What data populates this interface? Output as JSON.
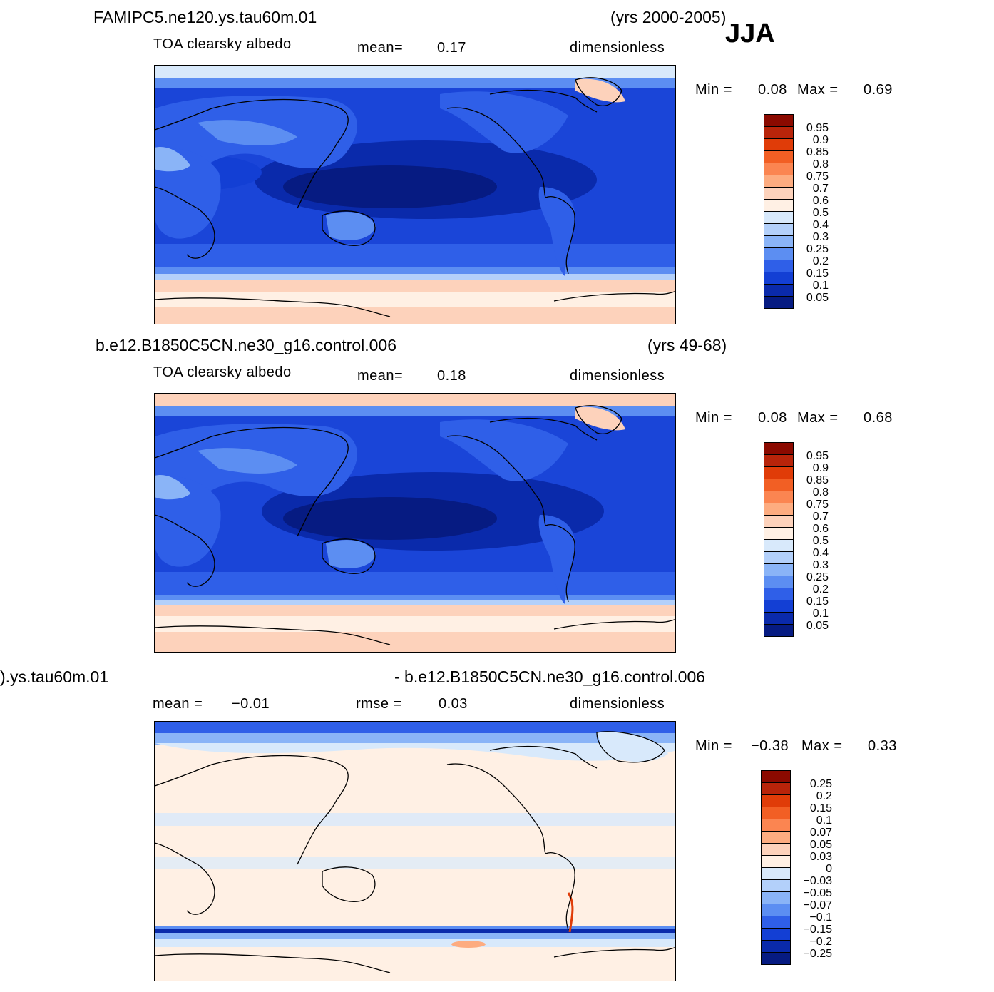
{
  "season": "JJA",
  "panels": [
    {
      "case_title": "FAMIPC5.ne120.ys.tau60m.01",
      "years": "(yrs 2000-2005)",
      "variable": "TOA clearsky albedo",
      "mean_label": "mean=",
      "mean_value": "0.17",
      "units": "dimensionless",
      "min_label": "Min =",
      "min_value": "0.08",
      "max_label": "Max =",
      "max_value": "0.69",
      "colorbar_levels": [
        "0.95",
        "0.9",
        "0.85",
        "0.8",
        "0.75",
        "0.7",
        "0.6",
        "0.5",
        "0.4",
        "0.3",
        "0.25",
        "0.2",
        "0.15",
        "0.1",
        "0.05"
      ],
      "colorbar_colors": [
        "#8b0a00",
        "#b8240a",
        "#e03c08",
        "#f25f24",
        "#fb8551",
        "#fdac80",
        "#fdd2bb",
        "#fff0e4",
        "#d8e9fb",
        "#b3d0fa",
        "#8ab4f7",
        "#5c8ef2",
        "#2f5fe8",
        "#133fd4",
        "#0a2aab",
        "#061b82"
      ]
    },
    {
      "case_title": "b.e12.B1850C5CN.ne30_g16.control.006",
      "years": "(yrs 49-68)",
      "variable": "TOA clearsky albedo",
      "mean_label": "mean=",
      "mean_value": "0.18",
      "units": "dimensionless",
      "min_label": "Min =",
      "min_value": "0.08",
      "max_label": "Max =",
      "max_value": "0.68",
      "colorbar_levels": [
        "0.95",
        "0.9",
        "0.85",
        "0.8",
        "0.75",
        "0.7",
        "0.6",
        "0.5",
        "0.4",
        "0.3",
        "0.25",
        "0.2",
        "0.15",
        "0.1",
        "0.05"
      ],
      "colorbar_colors": [
        "#8b0a00",
        "#b8240a",
        "#e03c08",
        "#f25f24",
        "#fb8551",
        "#fdac80",
        "#fdd2bb",
        "#fff0e4",
        "#d8e9fb",
        "#b3d0fa",
        "#8ab4f7",
        "#5c8ef2",
        "#2f5fe8",
        "#133fd4",
        "#0a2aab",
        "#061b82"
      ]
    },
    {
      "case_title_left": ").ys.tau60m.01",
      "case_title_right": "- b.e12.B1850C5CN.ne30_g16.control.006",
      "mean_label": "mean =",
      "mean_value": "−0.01",
      "rmse_label": "rmse =",
      "rmse_value": "0.03",
      "units": "dimensionless",
      "min_label": "Min =",
      "min_value": "−0.38",
      "max_label": "Max =",
      "max_value": "0.33",
      "colorbar_levels": [
        "0.25",
        "0.2",
        "0.15",
        "0.1",
        "0.07",
        "0.05",
        "0.03",
        "0",
        "−0.03",
        "−0.05",
        "−0.07",
        "−0.1",
        "−0.15",
        "−0.2",
        "−0.25"
      ],
      "colorbar_colors": [
        "#8b0a00",
        "#b8240a",
        "#e03c08",
        "#f25f24",
        "#fb8551",
        "#fdac80",
        "#fdd2bb",
        "#fff0e4",
        "#d8e9fb",
        "#b3d0fa",
        "#8ab4f7",
        "#5c8ef2",
        "#2f5fe8",
        "#133fd4",
        "#0a2aab",
        "#061b82"
      ]
    }
  ]
}
